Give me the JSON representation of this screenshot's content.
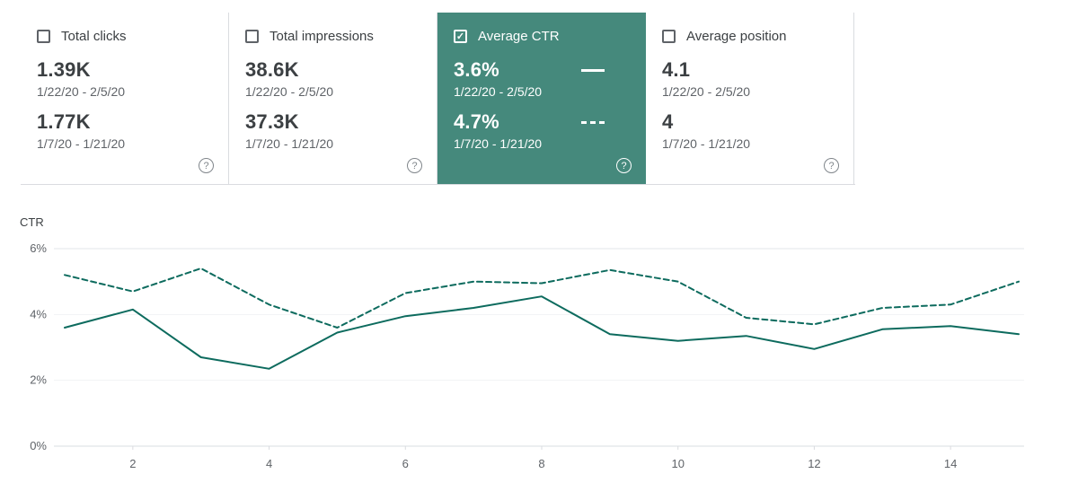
{
  "icons": {
    "help": "?",
    "check": "✓"
  },
  "colors": {
    "selected_card_bg": "#45897c",
    "line": "#0d6b5e",
    "border": "#dadce0",
    "text_primary": "#3c4043",
    "text_secondary": "#5f6368"
  },
  "cards": [
    {
      "label": "Total clicks",
      "checked": false,
      "selected": false,
      "value1": "1.39K",
      "range1": "1/22/20 - 2/5/20",
      "value2": "1.77K",
      "range2": "1/7/20 - 1/21/20"
    },
    {
      "label": "Total impressions",
      "checked": false,
      "selected": false,
      "value1": "38.6K",
      "range1": "1/22/20 - 2/5/20",
      "value2": "37.3K",
      "range2": "1/7/20 - 1/21/20"
    },
    {
      "label": "Average CTR",
      "checked": true,
      "selected": true,
      "value1": "3.6%",
      "range1": "1/22/20 - 2/5/20",
      "value2": "4.7%",
      "range2": "1/7/20 - 1/21/20"
    },
    {
      "label": "Average position",
      "checked": false,
      "selected": false,
      "value1": "4.1",
      "range1": "1/22/20 - 2/5/20",
      "value2": "4",
      "range2": "1/7/20 - 1/21/20"
    }
  ],
  "chart_data": {
    "type": "line",
    "title": "",
    "xlabel": "",
    "ylabel": "CTR",
    "x": [
      1,
      2,
      3,
      4,
      5,
      6,
      7,
      8,
      9,
      10,
      11,
      12,
      13,
      14,
      15
    ],
    "xticks": [
      2,
      4,
      6,
      8,
      10,
      12,
      14
    ],
    "yticks": [
      0,
      2,
      4,
      6
    ],
    "ytick_labels": [
      "0%",
      "2%",
      "4%",
      "6%"
    ],
    "ylim": [
      0,
      6
    ],
    "grid": true,
    "legend_position": "none",
    "series": [
      {
        "name": "1/22/20 - 2/5/20",
        "style": "solid",
        "values": [
          3.6,
          4.15,
          2.7,
          2.35,
          3.45,
          3.95,
          4.2,
          4.55,
          3.4,
          3.2,
          3.35,
          2.95,
          3.55,
          3.65,
          3.4
        ]
      },
      {
        "name": "1/7/20 - 1/21/20",
        "style": "dashed",
        "values": [
          5.2,
          4.7,
          5.4,
          4.3,
          3.6,
          4.65,
          5.0,
          4.95,
          5.35,
          5.0,
          3.9,
          3.7,
          4.2,
          4.3,
          5.0
        ]
      }
    ]
  }
}
